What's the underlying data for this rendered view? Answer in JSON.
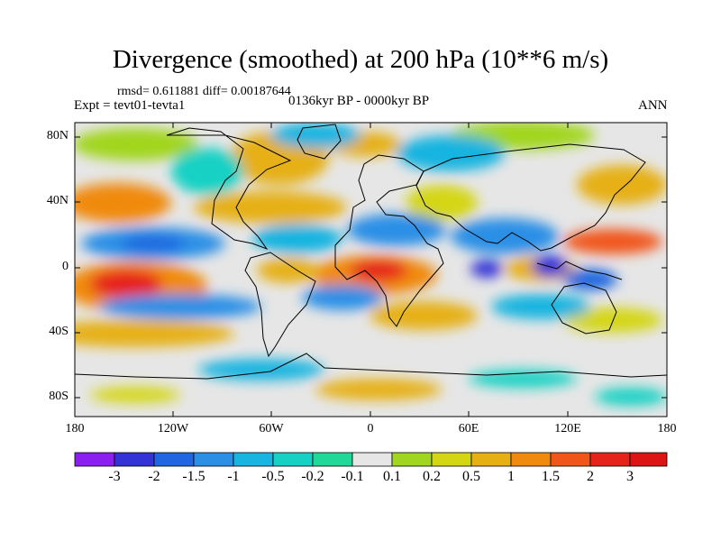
{
  "title": "Divergence (smoothed) at 200 hPa (10**6 m/s)",
  "stats": "rmsd= 0.611881  diff= 0.00187644",
  "experiment": "Expt = tevt01-tevta1",
  "period": "0136kyr BP - 0000kyr BP",
  "season": "ANN",
  "lat_labels": [
    "80N",
    "40N",
    "0",
    "40S",
    "80S"
  ],
  "lon_labels": [
    "180",
    "120W",
    "60W",
    "0",
    "60E",
    "120E",
    "180"
  ],
  "colorbar": {
    "labels": [
      "-3",
      "-2",
      "-1.5",
      "-1",
      "-0.5",
      "-0.2",
      "-0.1",
      "0.1",
      "0.2",
      "0.5",
      "1",
      "1.5",
      "2",
      "3"
    ],
    "colors": [
      "#8a1ff0",
      "#3333d6",
      "#1f66e0",
      "#2b8fe6",
      "#19b4e0",
      "#17d1c4",
      "#22d898",
      "#e6e6e6",
      "#a0d61f",
      "#d4d614",
      "#e6b014",
      "#f08a0f",
      "#f0561a",
      "#e6231a",
      "#dc1414"
    ]
  },
  "colors": {
    "land_outline": "#000000",
    "no_change": "#e6e6e6"
  }
}
